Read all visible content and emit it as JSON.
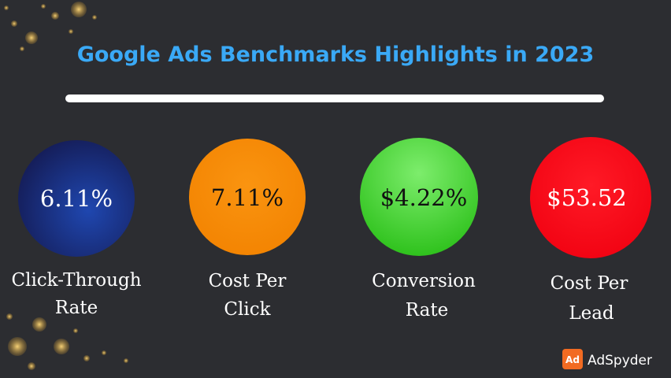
{
  "header": {
    "title": "Google Ads Benchmarks Highlights in 2023"
  },
  "metrics": [
    {
      "value": "6.11%",
      "label": [
        "Click-Through",
        "Rate"
      ]
    },
    {
      "value": "7.11%",
      "label": [
        "Cost Per",
        "Click"
      ]
    },
    {
      "value": "$4.22%",
      "label": [
        "Conversion",
        "Rate"
      ]
    },
    {
      "value": "$53.52",
      "label": [
        "Cost Per",
        "Lead"
      ]
    }
  ],
  "brand": {
    "icon": "Ad",
    "name": "AdSpyder"
  }
}
